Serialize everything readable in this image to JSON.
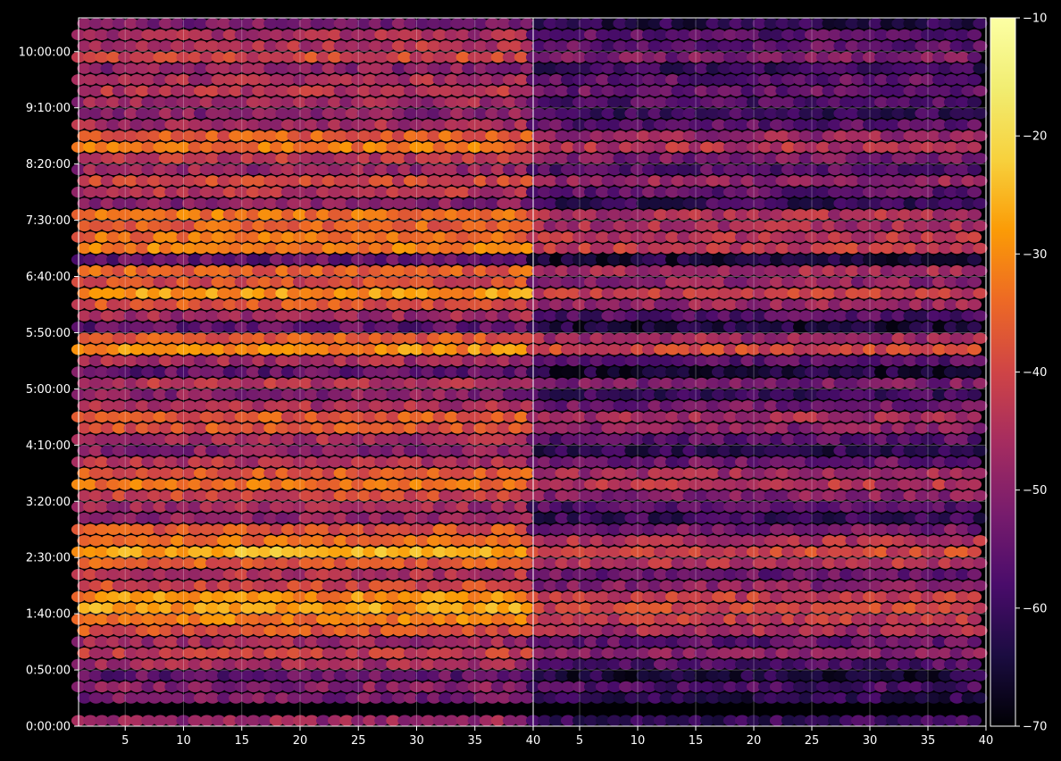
{
  "chart_data": {
    "type": "heatmap",
    "subtype": "hexbin",
    "panels": [
      {
        "name": "",
        "xlim": [
          1,
          40
        ],
        "ylim_seconds": [
          0,
          37800
        ],
        "row_profile": [
          [
            300,
            -48
          ],
          [
            1500,
            -52
          ],
          [
            2100,
            -50
          ],
          [
            2700,
            -55
          ],
          [
            3300,
            -47
          ],
          [
            3900,
            -42
          ],
          [
            4500,
            -47
          ],
          [
            5100,
            -38
          ],
          [
            5700,
            -32
          ],
          [
            6300,
            -28
          ],
          [
            6900,
            -30
          ],
          [
            7500,
            -40
          ],
          [
            8100,
            -44
          ],
          [
            8700,
            -36
          ],
          [
            9300,
            -26
          ],
          [
            9900,
            -34
          ],
          [
            10500,
            -38
          ],
          [
            11100,
            -49
          ],
          [
            11700,
            -47
          ],
          [
            12300,
            -40
          ],
          [
            12900,
            -33
          ],
          [
            13500,
            -37
          ],
          [
            14100,
            -44
          ],
          [
            14700,
            -50
          ],
          [
            15300,
            -46
          ],
          [
            15900,
            -38
          ],
          [
            16500,
            -37
          ],
          [
            17100,
            -45
          ],
          [
            17700,
            -50
          ],
          [
            18300,
            -44
          ],
          [
            18900,
            -55
          ],
          [
            19500,
            -46
          ],
          [
            20100,
            -30
          ],
          [
            20700,
            -37
          ],
          [
            21300,
            -55
          ],
          [
            21900,
            -47
          ],
          [
            22500,
            -38
          ],
          [
            23100,
            -29
          ],
          [
            23700,
            -39
          ],
          [
            24300,
            -36
          ],
          [
            24900,
            -55
          ],
          [
            25500,
            -32
          ],
          [
            26100,
            -34
          ],
          [
            26700,
            -36
          ],
          [
            27300,
            -33
          ],
          [
            27900,
            -50
          ],
          [
            28500,
            -44
          ],
          [
            29100,
            -40
          ],
          [
            29700,
            -48
          ],
          [
            30300,
            -43
          ],
          [
            30900,
            -33
          ],
          [
            31500,
            -36
          ],
          [
            32100,
            -46
          ],
          [
            32700,
            -50
          ],
          [
            33300,
            -47
          ],
          [
            33900,
            -44
          ],
          [
            34500,
            -45
          ],
          [
            35100,
            -50
          ],
          [
            35700,
            -40
          ],
          [
            36300,
            -44
          ],
          [
            36900,
            -46
          ],
          [
            37500,
            -52
          ]
        ]
      },
      {
        "name": "",
        "xlim": [
          1,
          40
        ],
        "ylim_seconds": [
          0,
          37800
        ],
        "row_profile": [
          [
            300,
            -60
          ],
          [
            1500,
            -62
          ],
          [
            2100,
            -58
          ],
          [
            2700,
            -64
          ],
          [
            3300,
            -57
          ],
          [
            3900,
            -50
          ],
          [
            4500,
            -55
          ],
          [
            5100,
            -46
          ],
          [
            5700,
            -42
          ],
          [
            6300,
            -40
          ],
          [
            6900,
            -42
          ],
          [
            7500,
            -50
          ],
          [
            8100,
            -54
          ],
          [
            8700,
            -44
          ],
          [
            9300,
            -40
          ],
          [
            9900,
            -44
          ],
          [
            10500,
            -52
          ],
          [
            11100,
            -60
          ],
          [
            11700,
            -57
          ],
          [
            12300,
            -50
          ],
          [
            12900,
            -44
          ],
          [
            13500,
            -47
          ],
          [
            14100,
            -54
          ],
          [
            14700,
            -62
          ],
          [
            15300,
            -56
          ],
          [
            15900,
            -50
          ],
          [
            16500,
            -46
          ],
          [
            17100,
            -53
          ],
          [
            17700,
            -60
          ],
          [
            18300,
            -52
          ],
          [
            18900,
            -64
          ],
          [
            19500,
            -56
          ],
          [
            20100,
            -40
          ],
          [
            20700,
            -47
          ],
          [
            21300,
            -64
          ],
          [
            21900,
            -57
          ],
          [
            22500,
            -48
          ],
          [
            23100,
            -42
          ],
          [
            23700,
            -49
          ],
          [
            24300,
            -46
          ],
          [
            24900,
            -64
          ],
          [
            25500,
            -42
          ],
          [
            26100,
            -44
          ],
          [
            26700,
            -46
          ],
          [
            27300,
            -45
          ],
          [
            27900,
            -60
          ],
          [
            28500,
            -55
          ],
          [
            29100,
            -48
          ],
          [
            29700,
            -56
          ],
          [
            30300,
            -52
          ],
          [
            30900,
            -44
          ],
          [
            31500,
            -48
          ],
          [
            32100,
            -56
          ],
          [
            32700,
            -60
          ],
          [
            33300,
            -57
          ],
          [
            33900,
            -54
          ],
          [
            34500,
            -55
          ],
          [
            35100,
            -60
          ],
          [
            35700,
            -52
          ],
          [
            36300,
            -55
          ],
          [
            36900,
            -56
          ],
          [
            37500,
            -62
          ]
        ]
      }
    ],
    "x_ticks": [
      "5",
      "10",
      "15",
      "20",
      "25",
      "30",
      "35",
      "40"
    ],
    "x_tick_values": [
      5,
      10,
      15,
      20,
      25,
      30,
      35,
      40
    ],
    "y_ticks": [
      "0:00:00",
      "0:50:00",
      "1:40:00",
      "2:30:00",
      "3:20:00",
      "4:10:00",
      "5:00:00",
      "5:50:00",
      "6:40:00",
      "7:30:00",
      "8:20:00",
      "9:10:00",
      "10:00:00"
    ],
    "y_tick_values_seconds": [
      0,
      3000,
      6000,
      9000,
      12000,
      15000,
      18000,
      21000,
      24000,
      27000,
      30000,
      33000,
      36000
    ],
    "colorbar": {
      "cmap": "inferno",
      "vmin": -70,
      "vmax": -10,
      "ticks": [
        "−70",
        "−60",
        "−50",
        "−40",
        "−30",
        "−20",
        "−10"
      ],
      "tick_values": [
        -70,
        -60,
        -50,
        -40,
        -30,
        -20,
        -10
      ]
    },
    "grid": true,
    "title": "",
    "xlabel": "",
    "ylabel": "",
    "colors": {
      "background": "#000000",
      "axis": "#ffffff"
    }
  }
}
